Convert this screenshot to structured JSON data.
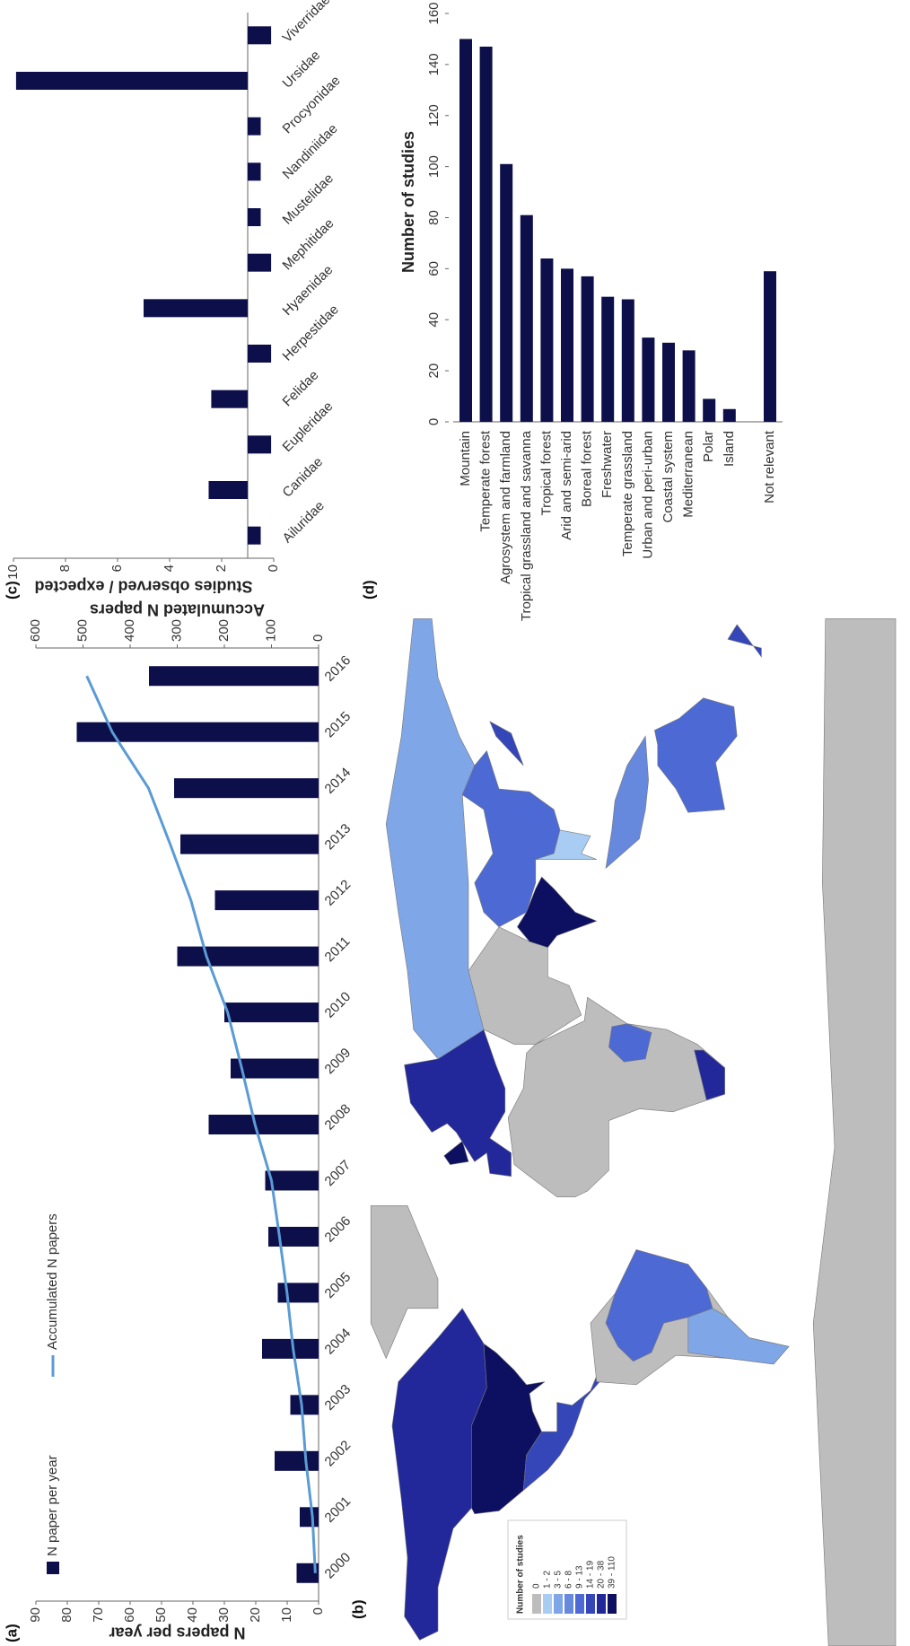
{
  "chart_data": [
    {
      "type": "combo",
      "panel_label": "(a)",
      "ylabel": "N papers per year",
      "y2label": "Accumulated N papers",
      "categories": [
        "2000",
        "2001",
        "2002",
        "2003",
        "2004",
        "2005",
        "2006",
        "2007",
        "2008",
        "2009",
        "2010",
        "2011",
        "2012",
        "2013",
        "2014",
        "2015",
        "2016"
      ],
      "series": [
        {
          "name": "N paper per year",
          "type": "bar",
          "color": "#0d0f4a",
          "values": [
            7,
            6,
            14,
            9,
            18,
            13,
            16,
            17,
            35,
            28,
            30,
            45,
            33,
            44,
            46,
            77,
            54
          ]
        },
        {
          "name": "Accumulated N papers",
          "type": "line",
          "axis": "y2",
          "color": "#5b9bd5",
          "values": [
            7,
            13,
            27,
            36,
            54,
            67,
            83,
            100,
            135,
            163,
            193,
            238,
            271,
            315,
            361,
            438,
            492
          ]
        }
      ],
      "ylim": [
        0,
        90
      ],
      "yticks": [
        0,
        10,
        20,
        30,
        40,
        50,
        60,
        70,
        80,
        90
      ],
      "y2lim": [
        0,
        600
      ],
      "y2ticks": [
        0,
        100,
        200,
        300,
        400,
        500,
        600
      ]
    },
    {
      "type": "map",
      "panel_label": "(b)",
      "legend_title": "Number of studies",
      "legend": [
        {
          "label": "0",
          "color": "#bdbdbd"
        },
        {
          "label": "1 - 2",
          "color": "#a9cdf2"
        },
        {
          "label": "3 - 5",
          "color": "#7fa6e6"
        },
        {
          "label": "6 - 8",
          "color": "#6688dd"
        },
        {
          "label": "9 - 13",
          "color": "#4d6ad4"
        },
        {
          "label": "14 - 19",
          "color": "#3446b8"
        },
        {
          "label": "20 - 38",
          "color": "#22289a"
        },
        {
          "label": "39 - 110",
          "color": "#0d1060"
        }
      ]
    },
    {
      "type": "bar",
      "panel_label": "(c)",
      "ylabel": "Studies observed / expected",
      "categories": [
        "Ailuridae",
        "Canidae",
        "Eupleridae",
        "Felidae",
        "Herpestidae",
        "Hyaenidae",
        "Mephitidae",
        "Mustelidae",
        "Nandiniidae",
        "Procyonidae",
        "Ursidae",
        "Viverridae"
      ],
      "values": [
        0.5,
        2.5,
        0.1,
        2.4,
        0.1,
        5.0,
        0.1,
        0.5,
        0.5,
        0.5,
        9.9,
        0.1
      ],
      "color": "#0d0f4a",
      "baseline": 1,
      "ylim": [
        0,
        10
      ],
      "yticks": [
        0,
        2,
        4,
        6,
        8,
        10
      ]
    },
    {
      "type": "hbar",
      "panel_label": "(d)",
      "xlabel": "Number of studies",
      "categories": [
        "Mountain",
        "Temperate forest",
        "Agrosystem and farmland",
        "Tropical grassland and savanna",
        "Tropical forest",
        "Arid and semi-arid",
        "Boreal forest",
        "Freshwater",
        "Temperate grassland",
        "Urban and peri-urban",
        "Coastal system",
        "Mediterranean",
        "Polar",
        "Island",
        null,
        "Not relevant"
      ],
      "values": [
        150,
        147,
        101,
        81,
        64,
        60,
        57,
        49,
        48,
        33,
        31,
        28,
        9,
        5,
        null,
        59
      ],
      "color": "#0d0f4a",
      "xlim": [
        0,
        160
      ],
      "xticks": [
        0,
        20,
        40,
        60,
        80,
        100,
        120,
        140,
        160
      ]
    }
  ]
}
